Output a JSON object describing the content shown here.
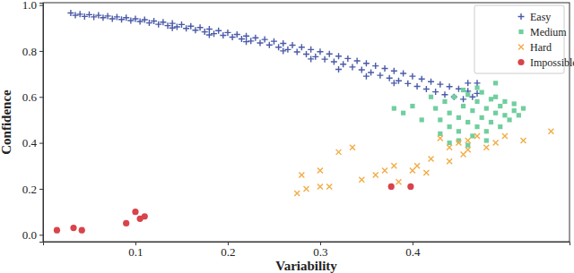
{
  "chart_data": {
    "type": "scatter",
    "x_label": "Variability",
    "y_label": "Confidence",
    "xlim": [
      0.0,
      0.57
    ],
    "ylim": [
      -0.03,
      1.01
    ],
    "xticks": [
      0.1,
      0.2,
      0.3,
      0.4
    ],
    "yticks": [
      {
        "value": 0.0,
        "label": "0.0"
      },
      0.2,
      0.4,
      0.6,
      0.8,
      {
        "value": 1.0,
        "label": "1.0"
      }
    ],
    "grid": false,
    "legend": "upper right",
    "series": [
      {
        "name": "Easy",
        "color": "#4a5aa8",
        "marker": "plus",
        "x": [
          0.03,
          0.035,
          0.04,
          0.045,
          0.05,
          0.055,
          0.06,
          0.065,
          0.07,
          0.075,
          0.08,
          0.085,
          0.09,
          0.095,
          0.1,
          0.105,
          0.11,
          0.115,
          0.12,
          0.125,
          0.13,
          0.135,
          0.14,
          0.145,
          0.15,
          0.155,
          0.16,
          0.165,
          0.17,
          0.175,
          0.18,
          0.185,
          0.19,
          0.195,
          0.2,
          0.205,
          0.21,
          0.215,
          0.22,
          0.225,
          0.23,
          0.235,
          0.24,
          0.245,
          0.25,
          0.255,
          0.26,
          0.265,
          0.27,
          0.275,
          0.28,
          0.285,
          0.29,
          0.295,
          0.3,
          0.305,
          0.31,
          0.315,
          0.32,
          0.325,
          0.33,
          0.335,
          0.34,
          0.345,
          0.35,
          0.355,
          0.36,
          0.365,
          0.37,
          0.375,
          0.38,
          0.385,
          0.39,
          0.395,
          0.4,
          0.405,
          0.41,
          0.415,
          0.42,
          0.425,
          0.43,
          0.435,
          0.44,
          0.445,
          0.45,
          0.455,
          0.46,
          0.465,
          0.47,
          0.46,
          0.47,
          0.38,
          0.35,
          0.32,
          0.29,
          0.26,
          0.22,
          0.18,
          0.14
        ],
        "values": [
          0.965,
          0.955,
          0.96,
          0.95,
          0.958,
          0.948,
          0.955,
          0.945,
          0.952,
          0.94,
          0.948,
          0.937,
          0.945,
          0.932,
          0.94,
          0.928,
          0.936,
          0.922,
          0.93,
          0.916,
          0.925,
          0.91,
          0.92,
          0.905,
          0.915,
          0.898,
          0.908,
          0.89,
          0.902,
          0.883,
          0.895,
          0.875,
          0.888,
          0.868,
          0.88,
          0.86,
          0.872,
          0.852,
          0.865,
          0.843,
          0.857,
          0.835,
          0.85,
          0.826,
          0.842,
          0.816,
          0.833,
          0.806,
          0.825,
          0.796,
          0.816,
          0.786,
          0.806,
          0.775,
          0.797,
          0.764,
          0.787,
          0.753,
          0.777,
          0.742,
          0.767,
          0.73,
          0.757,
          0.718,
          0.746,
          0.706,
          0.735,
          0.694,
          0.724,
          0.682,
          0.713,
          0.67,
          0.702,
          0.658,
          0.69,
          0.646,
          0.678,
          0.634,
          0.666,
          0.622,
          0.655,
          0.61,
          0.645,
          0.6,
          0.635,
          0.59,
          0.625,
          0.6,
          0.615,
          0.66,
          0.66,
          0.66,
          0.69,
          0.72,
          0.765,
          0.8,
          0.84,
          0.87,
          0.9
        ]
      },
      {
        "name": "Medium",
        "color": "#6fcf9e",
        "marker": "square",
        "x": [
          0.42,
          0.425,
          0.43,
          0.435,
          0.44,
          0.44,
          0.445,
          0.45,
          0.45,
          0.455,
          0.46,
          0.46,
          0.465,
          0.465,
          0.47,
          0.47,
          0.475,
          0.475,
          0.48,
          0.48,
          0.485,
          0.485,
          0.49,
          0.49,
          0.495,
          0.495,
          0.5,
          0.5,
          0.505,
          0.51,
          0.51,
          0.515,
          0.52,
          0.43,
          0.41,
          0.4,
          0.39,
          0.38,
          0.45,
          0.46,
          0.48,
          0.47,
          0.49,
          0.455,
          0.44
        ],
        "values": [
          0.6,
          0.55,
          0.5,
          0.58,
          0.53,
          0.47,
          0.6,
          0.51,
          0.45,
          0.56,
          0.61,
          0.49,
          0.54,
          0.43,
          0.58,
          0.47,
          0.62,
          0.51,
          0.55,
          0.45,
          0.59,
          0.49,
          0.53,
          0.6,
          0.47,
          0.56,
          0.52,
          0.58,
          0.5,
          0.54,
          0.57,
          0.52,
          0.55,
          0.44,
          0.5,
          0.56,
          0.53,
          0.55,
          0.41,
          0.39,
          0.41,
          0.64,
          0.66,
          0.63,
          0.4
        ]
      },
      {
        "name": "Hard",
        "color": "#f2ac45",
        "marker": "x",
        "x": [
          0.275,
          0.285,
          0.3,
          0.31,
          0.28,
          0.3,
          0.32,
          0.335,
          0.345,
          0.36,
          0.37,
          0.38,
          0.385,
          0.4,
          0.405,
          0.415,
          0.42,
          0.43,
          0.44,
          0.45,
          0.455,
          0.46,
          0.47,
          0.48,
          0.49,
          0.5,
          0.52,
          0.55,
          0.46,
          0.44
        ],
        "values": [
          0.18,
          0.2,
          0.21,
          0.21,
          0.26,
          0.28,
          0.36,
          0.38,
          0.24,
          0.26,
          0.28,
          0.3,
          0.23,
          0.28,
          0.3,
          0.27,
          0.33,
          0.42,
          0.38,
          0.4,
          0.35,
          0.41,
          0.43,
          0.38,
          0.4,
          0.43,
          0.41,
          0.45,
          0.37,
          0.32
        ]
      },
      {
        "name": "Impossible",
        "color": "#d9434b",
        "marker": "circle",
        "x": [
          0.015,
          0.033,
          0.042,
          0.09,
          0.1,
          0.105,
          0.11,
          0.377,
          0.398
        ],
        "values": [
          0.02,
          0.03,
          0.02,
          0.05,
          0.1,
          0.07,
          0.08,
          0.21,
          0.21
        ]
      }
    ]
  }
}
